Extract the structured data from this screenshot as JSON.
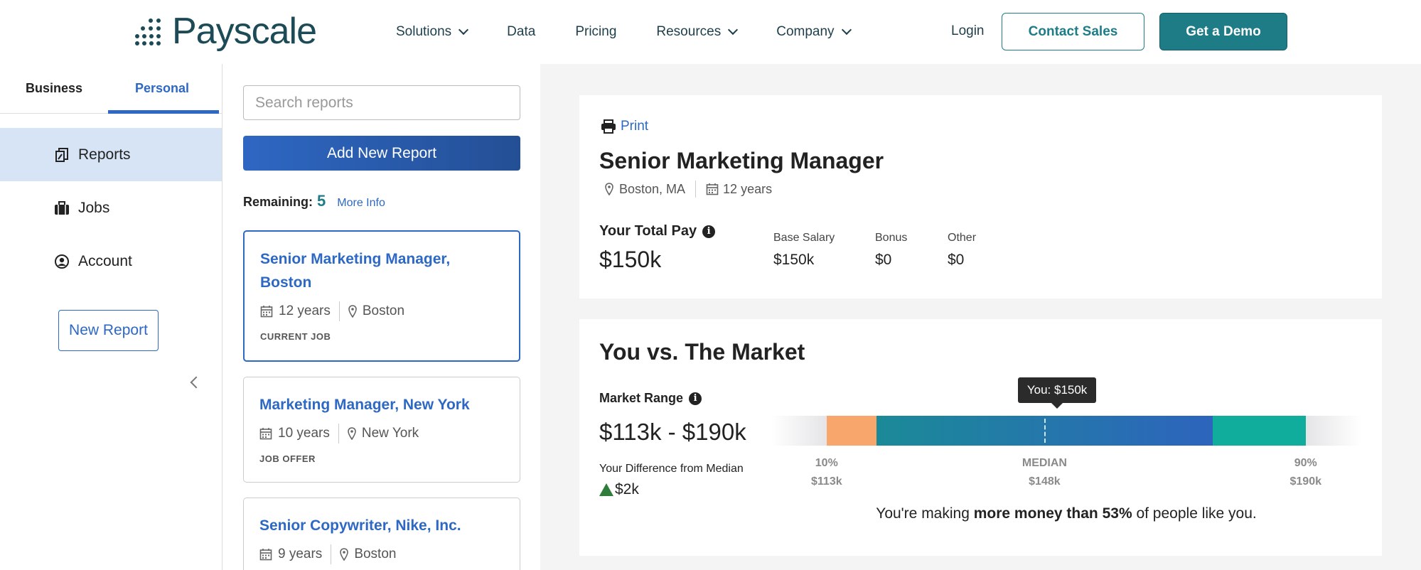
{
  "header": {
    "logo_text": "Payscale",
    "nav": [
      {
        "label": "Solutions",
        "dropdown": true
      },
      {
        "label": "Data",
        "dropdown": false
      },
      {
        "label": "Pricing",
        "dropdown": false
      },
      {
        "label": "Resources",
        "dropdown": true
      },
      {
        "label": "Company",
        "dropdown": true
      }
    ],
    "login": "Login",
    "contact_sales": "Contact Sales",
    "get_demo": "Get a Demo"
  },
  "sidebar": {
    "tabs": [
      "Business",
      "Personal"
    ],
    "active_tab": "Personal",
    "items": [
      {
        "label": "Reports",
        "icon": "reports-icon",
        "active": true
      },
      {
        "label": "Jobs",
        "icon": "briefcase-icon",
        "active": false
      },
      {
        "label": "Account",
        "icon": "user-circle-icon",
        "active": false
      }
    ],
    "new_report": "New Report"
  },
  "reports": {
    "search_placeholder": "Search reports",
    "add_button": "Add New Report",
    "remaining_label": "Remaining:",
    "remaining_count": "5",
    "more_info": "More Info",
    "cards": [
      {
        "title": "Senior Marketing Manager, Boston",
        "years": "12 years",
        "location": "Boston",
        "tag": "CURRENT JOB",
        "active": true
      },
      {
        "title": "Marketing Manager, New York",
        "years": "10 years",
        "location": "New York",
        "tag": "JOB OFFER",
        "active": false
      },
      {
        "title": "Senior Copywriter, Nike, Inc.",
        "years": "9 years",
        "location": "Boston",
        "tag": "",
        "active": false
      }
    ]
  },
  "summary": {
    "print": "Print",
    "job_title": "Senior Marketing Manager",
    "location": "Boston, MA",
    "experience": "12 years",
    "total_pay_label": "Your Total Pay",
    "total_pay": "$150k",
    "breakdown": [
      {
        "label": "Base Salary",
        "value": "$150k"
      },
      {
        "label": "Bonus",
        "value": "$0"
      },
      {
        "label": "Other",
        "value": "$0"
      }
    ]
  },
  "market": {
    "title": "You vs. The Market",
    "range_label": "Market Range",
    "range_value": "$113k - $190k",
    "diff_label": "Your Difference from Median",
    "diff_value": "$2k",
    "you_tooltip": "You: $150k",
    "ticks": [
      {
        "label": "10%",
        "value": "$113k"
      },
      {
        "label": "MEDIAN",
        "value": "$148k"
      },
      {
        "label": "90%",
        "value": "$190k"
      }
    ],
    "summary_pre": "You're making ",
    "summary_bold": "more money than 53%",
    "summary_post": " of people like you.",
    "range_k": {
      "p10": 113,
      "p25": 121,
      "median": 148,
      "you": 150,
      "p75": 175,
      "p90": 190
    },
    "colors": {
      "low": "#f8a66b",
      "mid_start": "#1b8a98",
      "mid_end": "#2d64bd",
      "high": "#10ad9d"
    }
  }
}
